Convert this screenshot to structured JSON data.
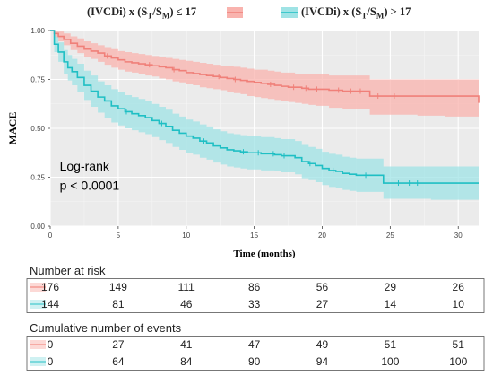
{
  "chart_data": {
    "type": "line",
    "subtype": "kaplan-meier",
    "ylabel": "MACE",
    "xlabel": "Time (months)",
    "xlim": [
      0,
      31.5
    ],
    "ylim": [
      0,
      1
    ],
    "x_ticks": [
      0,
      5,
      10,
      15,
      20,
      25,
      30
    ],
    "y_ticks": [
      0.0,
      0.25,
      0.5,
      0.75,
      1.0
    ],
    "y_tick_labels": [
      "0.00",
      "0.25",
      "0.50",
      "0.75",
      "1.00"
    ],
    "grid": true,
    "background": "#ebebeb",
    "legend_position": "top",
    "annotation": [
      "Log-rank",
      "p < 0.0001"
    ],
    "series": [
      {
        "name_prefix": "(IVCDi) x (S",
        "sub1": "T",
        "mid": "/S",
        "sub2": "M",
        "name_suffix": ") ≤ 17",
        "color": "#f08079",
        "band_color": "#f9b3ae",
        "x": [
          0,
          0.3,
          0.6,
          1,
          1.5,
          2,
          2.5,
          3,
          3.5,
          4,
          4.5,
          5,
          5.5,
          6,
          6.5,
          7,
          7.5,
          8,
          8.5,
          9,
          9.5,
          10,
          10.5,
          11,
          11.5,
          12,
          12.5,
          13,
          13.5,
          14,
          14.5,
          15,
          15.5,
          16,
          16.5,
          17,
          17.5,
          18,
          18.5,
          19,
          19.5,
          20,
          20.5,
          21,
          21.5,
          22,
          22.5,
          23,
          23.5,
          24,
          24.5,
          25,
          26,
          27,
          28,
          29,
          30,
          31,
          31.5
        ],
        "y": [
          1.0,
          0.985,
          0.97,
          0.955,
          0.935,
          0.92,
          0.905,
          0.895,
          0.885,
          0.87,
          0.86,
          0.85,
          0.84,
          0.835,
          0.83,
          0.825,
          0.82,
          0.815,
          0.81,
          0.8,
          0.795,
          0.785,
          0.78,
          0.775,
          0.77,
          0.765,
          0.76,
          0.755,
          0.75,
          0.745,
          0.74,
          0.735,
          0.73,
          0.725,
          0.72,
          0.715,
          0.71,
          0.71,
          0.705,
          0.7,
          0.7,
          0.7,
          0.695,
          0.695,
          0.69,
          0.69,
          0.69,
          0.69,
          0.665,
          0.665,
          0.665,
          0.665,
          0.665,
          0.665,
          0.665,
          0.665,
          0.665,
          0.665,
          0.63
        ],
        "lower": [
          1.0,
          0.965,
          0.945,
          0.925,
          0.9,
          0.885,
          0.865,
          0.855,
          0.84,
          0.825,
          0.81,
          0.8,
          0.79,
          0.785,
          0.775,
          0.77,
          0.765,
          0.755,
          0.75,
          0.74,
          0.735,
          0.725,
          0.72,
          0.71,
          0.705,
          0.7,
          0.695,
          0.685,
          0.68,
          0.675,
          0.665,
          0.66,
          0.655,
          0.65,
          0.645,
          0.64,
          0.635,
          0.63,
          0.625,
          0.62,
          0.615,
          0.615,
          0.605,
          0.605,
          0.6,
          0.6,
          0.6,
          0.6,
          0.57,
          0.57,
          0.57,
          0.57,
          0.57,
          0.565,
          0.565,
          0.56,
          0.56,
          0.56,
          0.52
        ],
        "upper": [
          1.0,
          1.0,
          0.995,
          0.985,
          0.97,
          0.96,
          0.945,
          0.935,
          0.925,
          0.915,
          0.905,
          0.895,
          0.89,
          0.885,
          0.88,
          0.875,
          0.87,
          0.865,
          0.86,
          0.855,
          0.85,
          0.845,
          0.84,
          0.835,
          0.83,
          0.825,
          0.82,
          0.82,
          0.815,
          0.81,
          0.805,
          0.8,
          0.8,
          0.795,
          0.79,
          0.785,
          0.785,
          0.78,
          0.78,
          0.775,
          0.775,
          0.775,
          0.77,
          0.77,
          0.77,
          0.77,
          0.77,
          0.77,
          0.75,
          0.75,
          0.75,
          0.75,
          0.75,
          0.75,
          0.75,
          0.75,
          0.75,
          0.75,
          0.74
        ],
        "censor_x": [
          4.2,
          7.3,
          9.1,
          12.4,
          13.6,
          16.2,
          17.9,
          18.8,
          19.6,
          21.2,
          22.1,
          22.8,
          24.1,
          25.3
        ]
      },
      {
        "name_prefix": "(IVCDi) x (S",
        "sub1": "T",
        "mid": "/S",
        "sub2": "M",
        "name_suffix": ") > 17",
        "color": "#1fbfc4",
        "band_color": "#9fe3e5",
        "x": [
          0,
          0.3,
          0.6,
          1,
          1.3,
          1.6,
          2,
          2.5,
          3,
          3.5,
          4,
          4.5,
          5,
          5.5,
          6,
          6.5,
          7,
          7.5,
          8,
          8.5,
          9,
          9.5,
          10,
          10.5,
          11,
          11.5,
          12,
          12.5,
          13,
          13.5,
          14,
          14.5,
          15,
          15.5,
          16,
          16.5,
          17,
          17.5,
          18,
          18.5,
          19,
          19.5,
          20,
          20.5,
          21,
          21.5,
          22,
          22.5,
          23,
          23.5,
          24,
          24.5,
          25,
          26,
          27,
          28,
          29,
          30,
          31.5
        ],
        "y": [
          1.0,
          0.93,
          0.89,
          0.84,
          0.81,
          0.79,
          0.76,
          0.72,
          0.69,
          0.66,
          0.64,
          0.615,
          0.6,
          0.585,
          0.575,
          0.565,
          0.555,
          0.54,
          0.525,
          0.51,
          0.49,
          0.475,
          0.46,
          0.45,
          0.435,
          0.425,
          0.41,
          0.4,
          0.39,
          0.385,
          0.38,
          0.375,
          0.375,
          0.37,
          0.37,
          0.365,
          0.36,
          0.36,
          0.35,
          0.33,
          0.32,
          0.31,
          0.295,
          0.285,
          0.28,
          0.27,
          0.265,
          0.26,
          0.26,
          0.26,
          0.26,
          0.22,
          0.22,
          0.22,
          0.22,
          0.22,
          0.22,
          0.22,
          0.22
        ],
        "lower": [
          1.0,
          0.89,
          0.84,
          0.78,
          0.745,
          0.72,
          0.685,
          0.645,
          0.61,
          0.58,
          0.555,
          0.53,
          0.515,
          0.5,
          0.49,
          0.48,
          0.47,
          0.455,
          0.44,
          0.425,
          0.405,
          0.39,
          0.375,
          0.365,
          0.35,
          0.34,
          0.325,
          0.315,
          0.305,
          0.3,
          0.295,
          0.29,
          0.29,
          0.285,
          0.285,
          0.28,
          0.275,
          0.275,
          0.265,
          0.245,
          0.235,
          0.225,
          0.21,
          0.2,
          0.195,
          0.185,
          0.18,
          0.175,
          0.175,
          0.175,
          0.175,
          0.14,
          0.14,
          0.14,
          0.14,
          0.135,
          0.135,
          0.135,
          0.13
        ],
        "upper": [
          1.0,
          0.97,
          0.94,
          0.9,
          0.875,
          0.855,
          0.83,
          0.795,
          0.77,
          0.74,
          0.72,
          0.7,
          0.685,
          0.67,
          0.66,
          0.65,
          0.64,
          0.625,
          0.61,
          0.595,
          0.575,
          0.56,
          0.545,
          0.535,
          0.52,
          0.51,
          0.495,
          0.485,
          0.475,
          0.47,
          0.465,
          0.46,
          0.46,
          0.455,
          0.455,
          0.45,
          0.445,
          0.445,
          0.435,
          0.415,
          0.405,
          0.395,
          0.38,
          0.37,
          0.365,
          0.355,
          0.35,
          0.345,
          0.345,
          0.345,
          0.345,
          0.305,
          0.305,
          0.305,
          0.305,
          0.305,
          0.305,
          0.305,
          0.31
        ],
        "censor_x": [
          5.6,
          8.2,
          11.3,
          14.2,
          15.3,
          16.4,
          17.2,
          19.1,
          20.8,
          23.2,
          25.6,
          26.4,
          27.0
        ]
      }
    ]
  },
  "risk_table": {
    "title": "Number at risk",
    "times": [
      0,
      5,
      10,
      15,
      20,
      25,
      30
    ],
    "rows": [
      {
        "values": [
          "176",
          "149",
          "111",
          "86",
          "56",
          "29",
          "26"
        ]
      },
      {
        "values": [
          "144",
          "81",
          "46",
          "33",
          "27",
          "14",
          "10"
        ]
      }
    ]
  },
  "events_table": {
    "title": "Cumulative number of events",
    "times": [
      0,
      5,
      10,
      15,
      20,
      25,
      30
    ],
    "rows": [
      {
        "values": [
          "0",
          "27",
          "41",
          "47",
          "49",
          "51",
          "51"
        ]
      },
      {
        "values": [
          "0",
          "64",
          "84",
          "90",
          "94",
          "100",
          "100"
        ]
      }
    ]
  }
}
